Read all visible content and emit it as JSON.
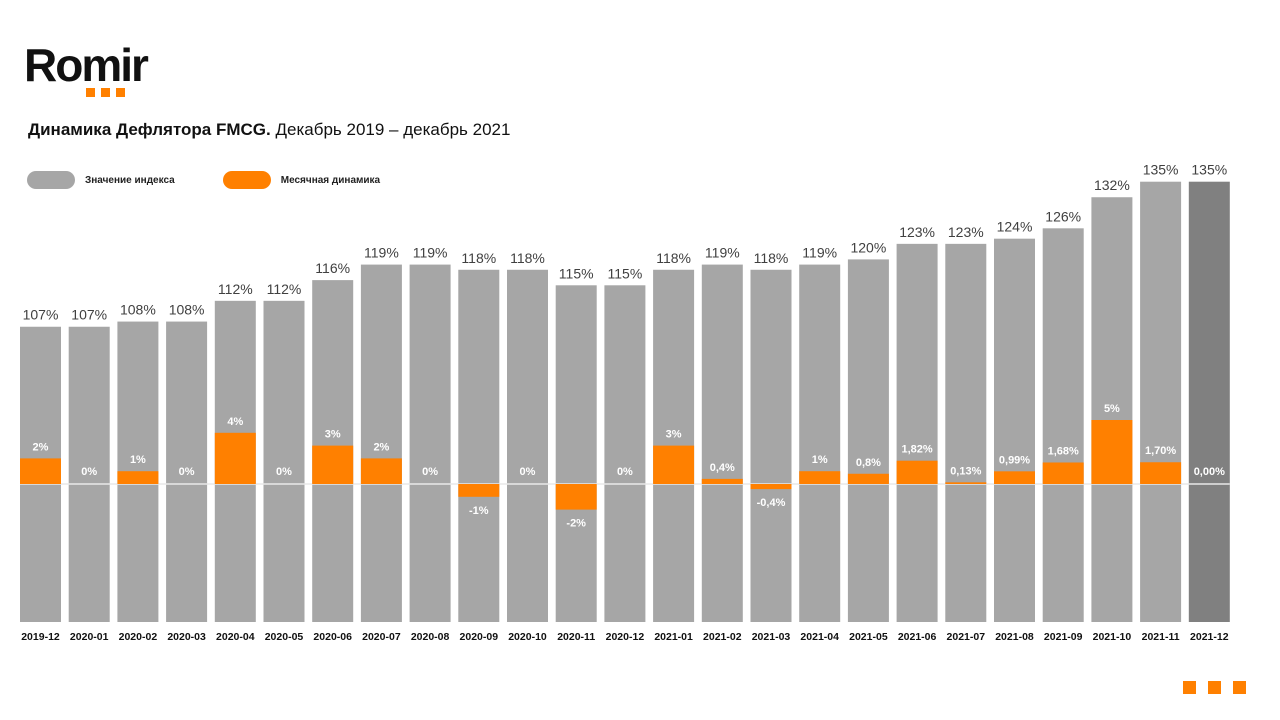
{
  "logo": {
    "text": "Romir"
  },
  "title": {
    "bold": "Динамика Дефлятора FMCG.",
    "rest": " Декабрь 2019 – декабрь 2021"
  },
  "colors": {
    "index": "#a6a6a6",
    "index_last": "#808080",
    "monthly": "#ff8000"
  },
  "chart_data": {
    "type": "bar",
    "title": "Динамика Дефлятора FMCG. Декабрь 2019 – декабрь 2021",
    "legend": [
      "Значение индекса",
      "Месячная динамика"
    ],
    "legend_position": "top-left",
    "categories": [
      "2019-12",
      "2020-01",
      "2020-02",
      "2020-03",
      "2020-04",
      "2020-05",
      "2020-06",
      "2020-07",
      "2020-08",
      "2020-09",
      "2020-10",
      "2020-11",
      "2020-12",
      "2021-01",
      "2021-02",
      "2021-03",
      "2021-04",
      "2021-05",
      "2021-06",
      "2021-07",
      "2021-08",
      "2021-09",
      "2021-10",
      "2021-11",
      "2021-12"
    ],
    "series": [
      {
        "name": "Значение индекса",
        "unit": "%",
        "values": [
          107,
          107,
          108,
          108,
          112,
          112,
          116,
          119,
          119,
          118,
          118,
          115,
          115,
          118,
          119,
          118,
          119,
          120,
          123,
          123,
          124,
          126,
          132,
          135,
          135
        ],
        "labels": [
          "107%",
          "107%",
          "108%",
          "108%",
          "112%",
          "112%",
          "116%",
          "119%",
          "119%",
          "118%",
          "118%",
          "115%",
          "115%",
          "118%",
          "119%",
          "118%",
          "119%",
          "120%",
          "123%",
          "123%",
          "124%",
          "126%",
          "132%",
          "135%",
          "135%"
        ]
      },
      {
        "name": "Месячная динамика",
        "unit": "%",
        "values": [
          2,
          0,
          1,
          0,
          4,
          0,
          3,
          2,
          0,
          -1,
          0,
          -2,
          0,
          3,
          0.4,
          -0.4,
          1,
          0.8,
          1.82,
          0.13,
          0.99,
          1.68,
          5,
          1.7,
          0
        ],
        "labels": [
          "2%",
          "0%",
          "1%",
          "0%",
          "4%",
          "0%",
          "3%",
          "2%",
          "0%",
          "-1%",
          "0%",
          "-2%",
          "0%",
          "3%",
          "0,4%",
          "-0,4%",
          "1%",
          "0,8%",
          "1,82%",
          "0,13%",
          "0,99%",
          "1,68%",
          "5%",
          "1,70%",
          "0,00%"
        ]
      }
    ],
    "grid": false
  }
}
